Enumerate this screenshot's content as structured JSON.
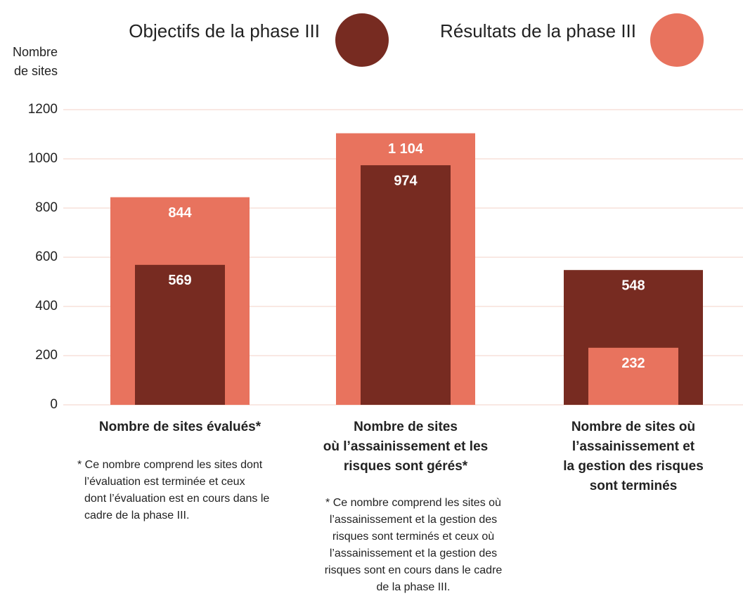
{
  "chart_data": {
    "type": "overlap_bar",
    "y_label": [
      "Nombre",
      "de sites"
    ],
    "categories": [
      [
        "Nombre de sites évalués*"
      ],
      [
        "Nombre de sites",
        "où l’assainissement et les",
        "risques sont gérés*"
      ],
      [
        "Nombre de sites où",
        "l’assainissement et",
        "la gestion des risques",
        "sont terminés"
      ]
    ],
    "series": [
      {
        "name": "Objectifs de la phase III",
        "color": "#772b21",
        "values": [
          569,
          974,
          548
        ]
      },
      {
        "name": "Résultats de la phase III",
        "color": "#e8735e",
        "values": [
          844,
          1104,
          232
        ],
        "value_labels": [
          "844",
          "1 104",
          "232"
        ]
      }
    ],
    "ylim": [
      0,
      1200
    ],
    "yticks": [
      0,
      200,
      400,
      600,
      800,
      1000,
      1200
    ],
    "grid": true,
    "notes": [
      [
        "* Ce nombre comprend les sites dont",
        "l’évaluation est terminée et ceux",
        "dont l’évaluation est en cours dans le",
        "cadre de la phase III."
      ],
      [
        "* Ce nombre comprend les sites où",
        "l’assainissement et la gestion des",
        "risques sont terminés et ceux où",
        "l’assainissement et la gestion des",
        "risques sont en cours dans le cadre",
        "de la phase III."
      ]
    ]
  }
}
